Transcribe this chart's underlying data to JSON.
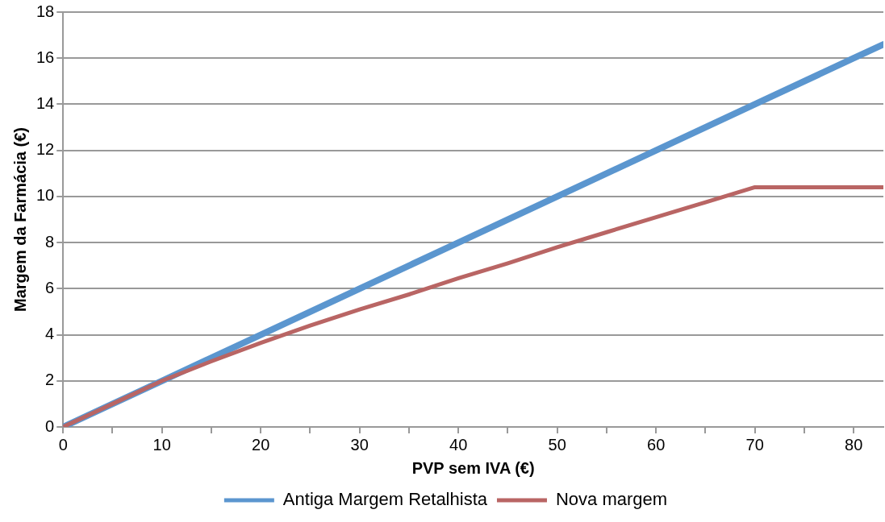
{
  "chart_data": {
    "type": "line",
    "xlabel": "PVP sem IVA (€)",
    "ylabel": "Margem da Farmácia (€)",
    "xlim": [
      0,
      83
    ],
    "xticks": [
      0,
      {
        "value": 5,
        "label": null
      },
      10,
      {
        "value": 15,
        "label": null
      },
      20,
      {
        "value": 25,
        "label": null
      },
      30,
      {
        "value": 35,
        "label": null
      },
      40,
      {
        "value": 45,
        "label": null
      },
      50,
      {
        "value": 55,
        "label": null
      },
      60,
      {
        "value": 65,
        "label": null
      },
      70,
      {
        "value": 75,
        "label": null
      },
      80
    ],
    "ylim": [
      0,
      18
    ],
    "yticks": [
      0,
      2,
      4,
      6,
      8,
      10,
      12,
      14,
      16,
      18
    ],
    "grid": "y",
    "legend": "bottom",
    "marker": "none",
    "line_style": "solid",
    "series": [
      {
        "name": "Antiga Margem Retalhista",
        "color": "#5b96cf",
        "x": [
          0,
          10,
          20,
          30,
          40,
          50,
          60,
          70,
          80,
          83
        ],
        "values": [
          0,
          2,
          4,
          6,
          8,
          10,
          12,
          14,
          16,
          16.6
        ]
      },
      {
        "name": "Nova margem",
        "color": "#b96564",
        "x": [
          0,
          5,
          10,
          15,
          20,
          25,
          30,
          35,
          40,
          45,
          50,
          55,
          60,
          65,
          70,
          83
        ],
        "values": [
          0,
          1,
          2,
          2.85,
          3.65,
          4.4,
          5.1,
          5.75,
          6.45,
          7.1,
          7.8,
          8.45,
          9.1,
          9.75,
          10.4,
          10.4
        ]
      }
    ]
  }
}
